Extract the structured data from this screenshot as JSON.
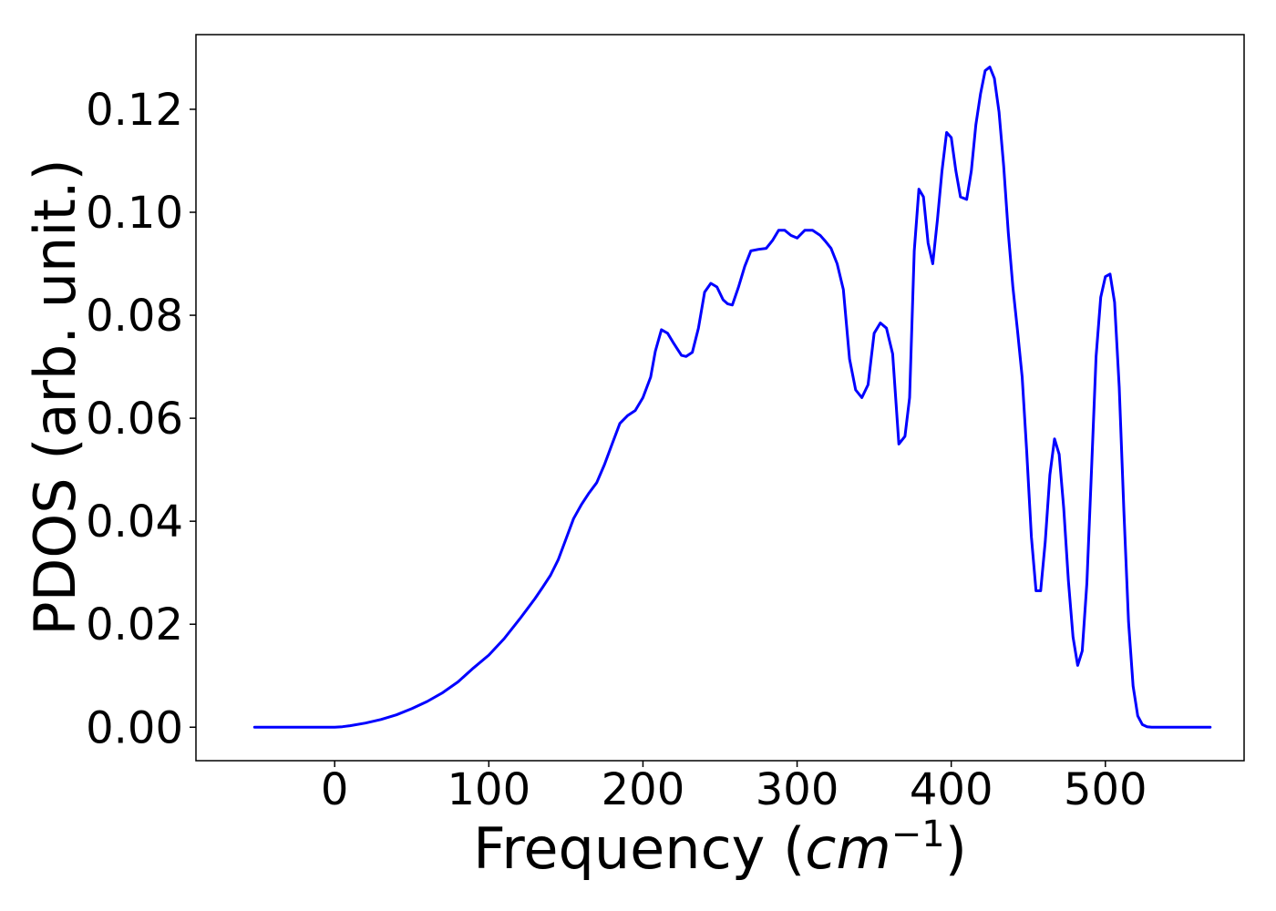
{
  "chart_data": {
    "type": "line",
    "title": "",
    "xlabel": {
      "text": "Frequency (",
      "math": "cm",
      "superscript": "−1",
      "close": ")"
    },
    "ylabel": "PDOS (arb. unit.)",
    "xlim": [
      -90,
      590
    ],
    "ylim": [
      -0.0065,
      0.1345
    ],
    "xticks": [
      0,
      100,
      200,
      300,
      400,
      500
    ],
    "xtick_labels": [
      "0",
      "100",
      "200",
      "300",
      "400",
      "500"
    ],
    "yticks": [
      0.0,
      0.02,
      0.04,
      0.06,
      0.08,
      0.1,
      0.12
    ],
    "ytick_labels": [
      "0.00",
      "0.02",
      "0.04",
      "0.06",
      "0.08",
      "0.10",
      "0.12"
    ],
    "grid": false,
    "legend": false,
    "colors": {
      "line": "#0000ff",
      "axes": "#000000",
      "background": "#ffffff"
    },
    "series": [
      {
        "x": [
          -52,
          -45,
          -30,
          -15,
          0,
          5,
          10,
          20,
          30,
          40,
          50,
          60,
          70,
          80,
          90,
          100,
          110,
          120,
          125,
          130,
          135,
          140,
          145,
          150,
          155,
          160,
          165,
          170,
          175,
          180,
          185,
          190,
          195,
          200,
          205,
          208,
          212,
          216,
          220,
          225,
          228,
          232,
          236,
          240,
          244,
          248,
          252,
          255,
          258,
          262,
          266,
          270,
          275,
          280,
          284,
          288,
          292,
          296,
          300,
          305,
          310,
          315,
          318,
          322,
          326,
          330,
          334,
          338,
          342,
          346,
          350,
          354,
          358,
          362,
          366,
          370,
          373,
          376,
          379,
          382,
          385,
          388,
          391,
          394,
          397,
          400,
          403,
          406,
          410,
          413,
          416,
          419,
          422,
          425,
          428,
          431,
          434,
          437,
          440,
          443,
          446,
          449,
          452,
          455,
          458,
          461,
          464,
          467,
          470,
          473,
          476,
          479,
          482,
          485,
          488,
          491,
          494,
          497,
          500,
          503,
          506,
          509,
          512,
          515,
          518,
          521,
          524,
          527,
          530,
          535,
          540,
          550,
          560,
          568
        ],
        "y": [
          0.0,
          0.0,
          0.0,
          0.0,
          0.0,
          0.0001,
          0.0003,
          0.0008,
          0.0015,
          0.0024,
          0.0036,
          0.005,
          0.0067,
          0.0088,
          0.0115,
          0.014,
          0.0172,
          0.021,
          0.023,
          0.025,
          0.0272,
          0.0295,
          0.0325,
          0.0365,
          0.0405,
          0.0432,
          0.0455,
          0.0475,
          0.051,
          0.055,
          0.059,
          0.0605,
          0.0615,
          0.064,
          0.068,
          0.073,
          0.0772,
          0.0765,
          0.0745,
          0.0722,
          0.072,
          0.0728,
          0.0775,
          0.0845,
          0.0862,
          0.0855,
          0.083,
          0.0822,
          0.082,
          0.0855,
          0.0895,
          0.0925,
          0.0928,
          0.093,
          0.0945,
          0.0965,
          0.0965,
          0.0955,
          0.095,
          0.0965,
          0.0965,
          0.0955,
          0.0945,
          0.093,
          0.09,
          0.085,
          0.0715,
          0.0655,
          0.064,
          0.0665,
          0.0765,
          0.0785,
          0.0775,
          0.0725,
          0.055,
          0.0565,
          0.064,
          0.0925,
          0.1045,
          0.103,
          0.094,
          0.09,
          0.0985,
          0.108,
          0.1155,
          0.1145,
          0.108,
          0.103,
          0.1025,
          0.108,
          0.117,
          0.123,
          0.1275,
          0.1282,
          0.126,
          0.1195,
          0.109,
          0.096,
          0.0855,
          0.077,
          0.068,
          0.0535,
          0.037,
          0.0265,
          0.0265,
          0.036,
          0.049,
          0.056,
          0.053,
          0.0425,
          0.0285,
          0.0175,
          0.012,
          0.0148,
          0.028,
          0.05,
          0.072,
          0.0835,
          0.0875,
          0.088,
          0.0825,
          0.066,
          0.042,
          0.0205,
          0.008,
          0.0022,
          0.0005,
          0.0001,
          0.0,
          0.0,
          0.0,
          0.0,
          0.0,
          0.0
        ]
      }
    ]
  }
}
